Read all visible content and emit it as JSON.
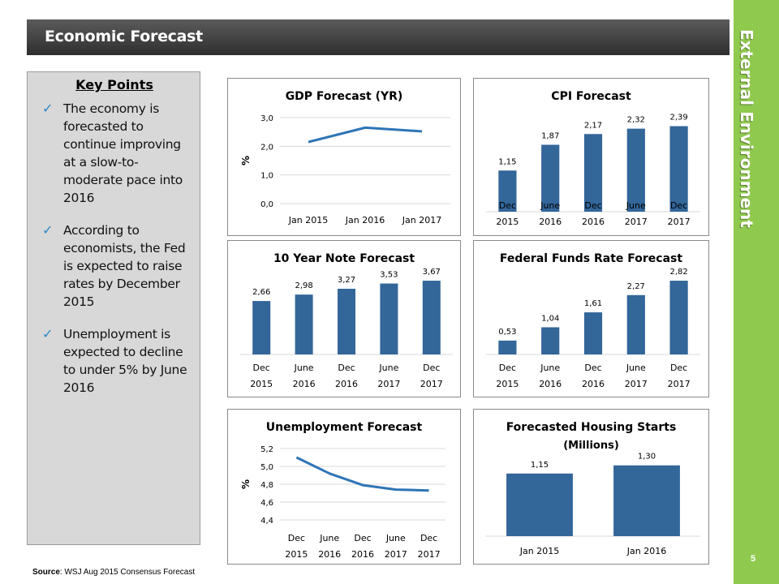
{
  "header": {
    "title": "Economic Forecast"
  },
  "side": {
    "title": "External Environment",
    "page_number": "5"
  },
  "key_points": {
    "heading": "Key Points",
    "items": [
      "The economy is forecasted to continue improving at a slow-to-moderate pace into 2016",
      "According to economists, the Fed is expected to raise rates by December 2015",
      "Unemployment is expected to decline to under 5% by June 2016"
    ]
  },
  "source": {
    "label": "Source",
    "text": ": WSJ Aug 2015 Consensus Forecast"
  },
  "colors": {
    "bar": "#336699",
    "line": "#2e75b6",
    "header": "#3d3d3d",
    "side": "#8fc94e",
    "check": "#2b86c9"
  },
  "chart_data": [
    {
      "id": "gdp",
      "type": "line",
      "title": "GDP Forecast (YR)",
      "ylabel": "%",
      "categories": [
        "Jan 2015",
        "Jan 2016",
        "Jan 2017"
      ],
      "values": [
        2.15,
        2.65,
        2.52
      ],
      "ylim": [
        0,
        3
      ],
      "yticks": [
        "0,0",
        "1,0",
        "2,0",
        "3,0"
      ],
      "grid": true
    },
    {
      "id": "cpi",
      "type": "bar",
      "title": "CPI Forecast",
      "categories": [
        [
          "Dec",
          "2015"
        ],
        [
          "June",
          "2016"
        ],
        [
          "Dec",
          "2016"
        ],
        [
          "June",
          "2017"
        ],
        [
          "Dec",
          "2017"
        ]
      ],
      "values": [
        1.15,
        1.87,
        2.17,
        2.32,
        2.39
      ],
      "labels": [
        "1,15",
        "1,87",
        "2,17",
        "2,32",
        "2,39"
      ]
    },
    {
      "id": "note",
      "type": "bar",
      "title": "10 Year Note Forecast",
      "categories": [
        [
          "Dec",
          "2015"
        ],
        [
          "June",
          "2016"
        ],
        [
          "Dec",
          "2016"
        ],
        [
          "June",
          "2017"
        ],
        [
          "Dec",
          "2017"
        ]
      ],
      "values": [
        2.66,
        2.98,
        3.27,
        3.53,
        3.67
      ],
      "labels": [
        "2,66",
        "2,98",
        "3,27",
        "3,53",
        "3,67"
      ]
    },
    {
      "id": "fed",
      "type": "bar",
      "title": "Federal Funds Rate Forecast",
      "categories": [
        [
          "Dec",
          "2015"
        ],
        [
          "June",
          "2016"
        ],
        [
          "Dec",
          "2016"
        ],
        [
          "June",
          "2017"
        ],
        [
          "Dec",
          "2017"
        ]
      ],
      "values": [
        0.53,
        1.04,
        1.61,
        2.27,
        2.82
      ],
      "labels": [
        "0,53",
        "1,04",
        "1,61",
        "2,27",
        "2,82"
      ]
    },
    {
      "id": "unemp",
      "type": "line",
      "title": "Unemployment Forecast",
      "ylabel": "%",
      "categories": [
        [
          "Dec",
          "2015"
        ],
        [
          "June",
          "2016"
        ],
        [
          "Dec",
          "2016"
        ],
        [
          "June",
          "2017"
        ],
        [
          "Dec",
          "2017"
        ]
      ],
      "values": [
        5.1,
        4.92,
        4.79,
        4.74,
        4.73
      ],
      "ylim": [
        4.4,
        5.2
      ],
      "yticks": [
        "4,4",
        "4,6",
        "4,8",
        "5,0",
        "5,2"
      ],
      "grid": true
    },
    {
      "id": "housing",
      "type": "bar",
      "title": "Forecasted Housing Starts",
      "subtitle": "(Millions)",
      "categories": [
        "Jan 2015",
        "Jan 2016"
      ],
      "values": [
        1.15,
        1.3
      ],
      "labels": [
        "1,15",
        "1,30"
      ]
    }
  ]
}
